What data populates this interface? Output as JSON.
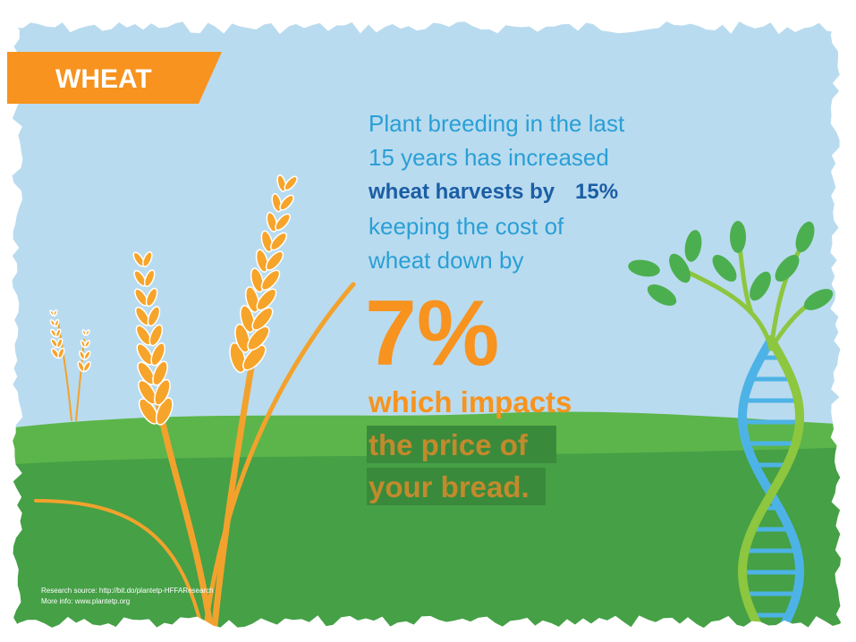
{
  "badge": "WHEAT",
  "text": {
    "intro_lines": [
      "Plant breeding in the last",
      "15 years has increased"
    ],
    "highlight": {
      "words": "wheat harvests by",
      "figure": "15%"
    },
    "cost_lines": [
      "keeping the cost of",
      "wheat down by"
    ],
    "big_figure": "7%",
    "impact": "which impacts",
    "price_lines": [
      "the price of",
      "your bread."
    ]
  },
  "sources": [
    "Research source: http://bit.do/plantetp-HFFAResearch",
    "More info: www.plantetp.org"
  ]
}
